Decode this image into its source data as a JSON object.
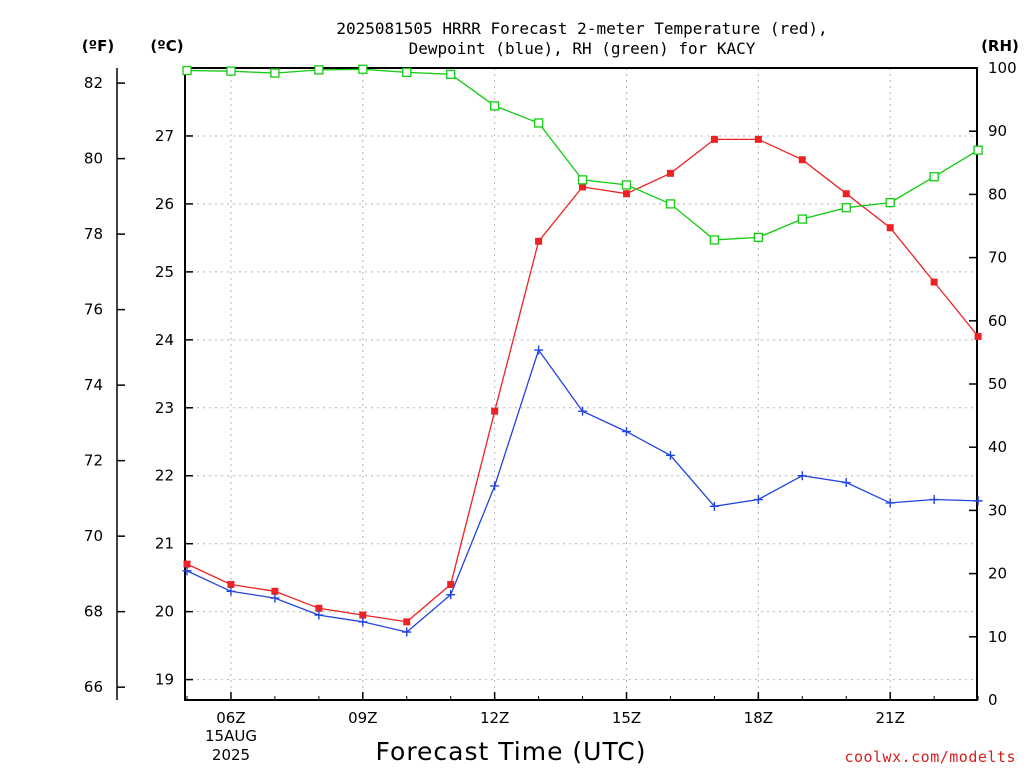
{
  "title_lines": [
    "2025081505 HRRR Forecast 2-meter Temperature (red),",
    "Dewpoint (blue), RH (green) for KACY"
  ],
  "axis_units": {
    "fahrenheit": "(ºF)",
    "celsius": "(ºC)",
    "rh": "(RH)"
  },
  "xlabel": "Forecast Time (UTC)",
  "date_label": [
    "15AUG",
    "2025"
  ],
  "credit": "coolwx.com/modelts",
  "colors": {
    "temperature": "#ee2222",
    "dewpoint": "#2244dd",
    "rh": "#11cc11",
    "grid": "#b4b4b4"
  },
  "chart_data": {
    "type": "line",
    "x": [
      "05Z",
      "06Z",
      "07Z",
      "08Z",
      "09Z",
      "10Z",
      "11Z",
      "12Z",
      "13Z",
      "14Z",
      "15Z",
      "16Z",
      "17Z",
      "18Z",
      "19Z",
      "20Z",
      "21Z",
      "22Z",
      "23Z"
    ],
    "x_tick_labels": [
      "06Z",
      "09Z",
      "12Z",
      "15Z",
      "18Z",
      "21Z"
    ],
    "xlabel": "Forecast Time (UTC)",
    "y_left_celsius": {
      "ylim": [
        18.7,
        28.0
      ],
      "ticks": [
        "19",
        "20",
        "21",
        "22",
        "23",
        "24",
        "25",
        "26",
        "27"
      ]
    },
    "y_left_fahrenheit": {
      "ylim": [
        65.66,
        82.4
      ],
      "ticks": [
        "66",
        "68",
        "70",
        "72",
        "74",
        "76",
        "78",
        "80",
        "82"
      ]
    },
    "y_right_rh": {
      "ylim": [
        0,
        100
      ],
      "ticks": [
        "0",
        "10",
        "20",
        "30",
        "40",
        "50",
        "60",
        "70",
        "80",
        "90",
        "100"
      ]
    },
    "grid": true,
    "series": [
      {
        "key": "temperature",
        "axis": "celsius",
        "marker": "filled-square",
        "values": [
          20.7,
          20.4,
          20.3,
          20.05,
          19.95,
          19.85,
          20.4,
          22.95,
          25.45,
          26.25,
          26.15,
          26.45,
          26.95,
          26.95,
          26.65,
          26.15,
          25.65,
          24.85,
          24.05
        ]
      },
      {
        "key": "dewpoint",
        "axis": "celsius",
        "marker": "plus",
        "values": [
          20.6,
          20.3,
          20.2,
          19.95,
          19.85,
          19.7,
          20.25,
          21.85,
          23.85,
          22.95,
          22.65,
          22.3,
          21.55,
          21.65,
          22.0,
          21.9,
          21.6,
          21.65,
          21.63
        ]
      },
      {
        "key": "rh",
        "axis": "rh",
        "marker": "open-square",
        "values": [
          99.6,
          99.5,
          99.2,
          99.7,
          99.8,
          99.3,
          99.0,
          94.0,
          91.3,
          82.3,
          81.5,
          78.5,
          72.8,
          73.2,
          76.1,
          77.9,
          78.7,
          82.8,
          87.0
        ]
      }
    ]
  }
}
